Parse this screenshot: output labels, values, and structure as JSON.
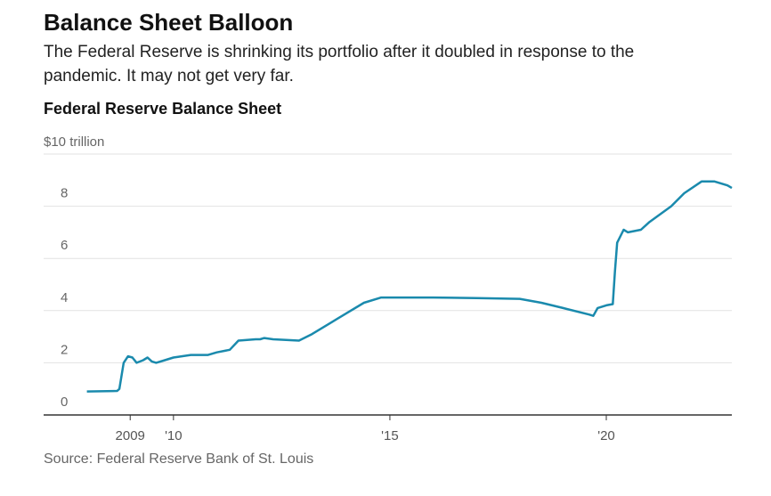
{
  "chart_data": {
    "type": "line",
    "headline": "Balance Sheet Balloon",
    "subtitle": [
      "The Federal Reserve is shrinking its portfolio after it doubled in response to the",
      "pandemic. It may not get very far."
    ],
    "title": "Federal Reserve Balance Sheet",
    "source": "Source: Federal Reserve Bank of St. Louis",
    "x": [
      2008.0,
      2008.7,
      2008.75,
      2008.85,
      2008.95,
      2009.05,
      2009.15,
      2009.3,
      2009.4,
      2009.5,
      2009.6,
      2009.8,
      2010.0,
      2010.4,
      2010.8,
      2011.0,
      2011.3,
      2011.5,
      2011.9,
      2012.0,
      2012.1,
      2012.3,
      2012.9,
      2013.2,
      2013.6,
      2014.0,
      2014.4,
      2014.8,
      2015.0,
      2016.0,
      2017.0,
      2018.0,
      2018.5,
      2019.0,
      2019.6,
      2019.7,
      2019.8,
      2020.0,
      2020.15,
      2020.2,
      2020.25,
      2020.4,
      2020.5,
      2020.8,
      2021.0,
      2021.5,
      2021.8,
      2022.2,
      2022.5,
      2022.8,
      2022.9
    ],
    "series": [
      {
        "name": "Federal Reserve Balance Sheet",
        "color": "#1a8aad",
        "values": [
          0.9,
          0.92,
          1.0,
          2.0,
          2.25,
          2.2,
          2.0,
          2.1,
          2.2,
          2.05,
          2.0,
          2.1,
          2.2,
          2.3,
          2.3,
          2.4,
          2.5,
          2.85,
          2.9,
          2.9,
          2.95,
          2.9,
          2.85,
          3.1,
          3.5,
          3.9,
          4.3,
          4.5,
          4.5,
          4.5,
          4.48,
          4.45,
          4.3,
          4.1,
          3.85,
          3.8,
          4.1,
          4.2,
          4.25,
          5.5,
          6.6,
          7.1,
          7.0,
          7.1,
          7.4,
          8.0,
          8.5,
          8.95,
          8.95,
          8.8,
          8.7
        ]
      }
    ],
    "xlim": [
      2007.0,
      2022.9
    ],
    "xticks": [
      {
        "value": 2009,
        "label": "2009"
      },
      {
        "value": 2010,
        "label": "'10"
      },
      {
        "value": 2015,
        "label": "'15"
      },
      {
        "value": 2020,
        "label": "'20"
      }
    ],
    "ylim": [
      0,
      10
    ],
    "yticks": [
      0,
      2,
      4,
      6,
      8,
      {
        "value": 10,
        "label": "$10 trillion"
      }
    ],
    "grid": true
  }
}
